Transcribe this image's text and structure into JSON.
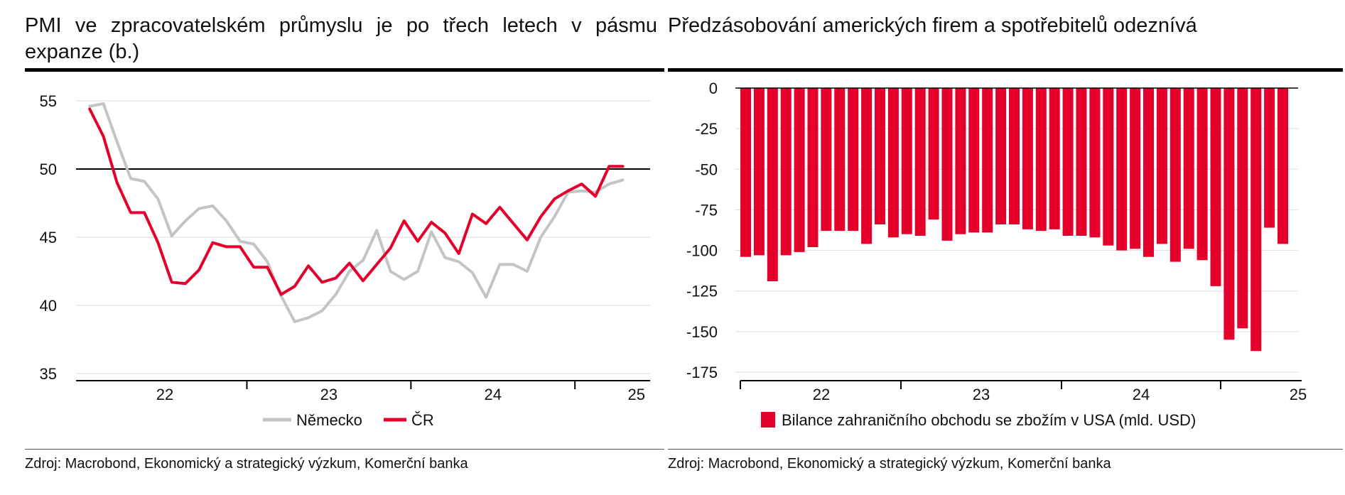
{
  "colors": {
    "germany": "#c4c4c4",
    "czech": "#e4002b",
    "bars": "#e4002b",
    "grid": "#dddddd"
  },
  "left": {
    "title": "PMI ve zpracovatelském průmyslu je po třech letech v pásmu expanze (b.)",
    "source": "Zdroj: Macrobond, Ekonomický a strategický výzkum, Komerční banka"
  },
  "right": {
    "title": "Předzásobování amerických firem a spotřebitelů odeznívá",
    "source": "Zdroj: Macrobond, Ekonomický a strategický výzkum, Komerční banka"
  },
  "chart_data": [
    {
      "type": "line",
      "title": "PMI ve zpracovatelském průmyslu je po třech letech v pásmu expanze (b.)",
      "ylim": [
        35,
        55
      ],
      "yticks": [
        55,
        50,
        45,
        40,
        35
      ],
      "reference_line": 50,
      "xticks": [
        "22",
        "23",
        "24",
        "25"
      ],
      "grid": true,
      "legend": "bottom",
      "x_months": [
        "2022-01",
        "2022-02",
        "2022-03",
        "2022-04",
        "2022-05",
        "2022-06",
        "2022-07",
        "2022-08",
        "2022-09",
        "2022-10",
        "2022-11",
        "2022-12",
        "2023-01",
        "2023-02",
        "2023-03",
        "2023-04",
        "2023-05",
        "2023-06",
        "2023-07",
        "2023-08",
        "2023-09",
        "2023-10",
        "2023-11",
        "2023-12",
        "2024-01",
        "2024-02",
        "2024-03",
        "2024-04",
        "2024-05",
        "2024-06",
        "2024-07",
        "2024-08",
        "2024-09",
        "2024-10",
        "2024-11",
        "2024-12",
        "2025-01",
        "2025-02",
        "2025-03",
        "2025-04"
      ],
      "series": [
        {
          "name": "Německo",
          "values": [
            54.6,
            54.8,
            52.0,
            49.3,
            49.1,
            47.8,
            45.1,
            46.2,
            47.1,
            47.3,
            46.2,
            44.7,
            44.5,
            43.2,
            40.7,
            38.8,
            39.1,
            39.6,
            40.8,
            42.5,
            43.3,
            45.5,
            42.5,
            41.9,
            42.5,
            45.4,
            43.5,
            43.2,
            42.4,
            40.6,
            43.0,
            43.0,
            42.5,
            45.0,
            46.5,
            48.3,
            48.4,
            48.3,
            48.9,
            49.2
          ]
        },
        {
          "name": "ČR",
          "values": [
            54.4,
            52.4,
            49.0,
            46.8,
            46.8,
            44.6,
            41.7,
            41.6,
            42.6,
            44.6,
            44.3,
            44.3,
            42.8,
            42.8,
            40.8,
            41.4,
            42.9,
            41.7,
            42.0,
            43.1,
            41.8,
            43.0,
            44.2,
            46.2,
            44.7,
            46.1,
            45.3,
            43.8,
            46.7,
            46.0,
            47.2,
            46.0,
            44.8,
            46.5,
            47.8,
            48.4,
            48.9,
            48.0,
            50.2,
            50.2
          ]
        }
      ]
    },
    {
      "type": "bar",
      "title": "Předzásobování amerických firem a spotřebitelů odeznívá",
      "ylim": [
        -175,
        0
      ],
      "yticks": [
        0,
        -25,
        -50,
        -75,
        -100,
        -125,
        -150,
        -175
      ],
      "xticks": [
        "22",
        "23",
        "24",
        "25"
      ],
      "grid": true,
      "legend": "bottom",
      "series": [
        {
          "name": "Bilance zahraničního obchodu se zbožím v USA (mld. USD)",
          "values": [
            -104,
            -103,
            -119,
            -103,
            -101,
            -98,
            -88,
            -88,
            -88,
            -96,
            -84,
            -92,
            -90,
            -91,
            -81,
            -94,
            -90,
            -89,
            -89,
            -84,
            -84,
            -87,
            -88,
            -87,
            -91,
            -91,
            -92,
            -97,
            -100,
            -99,
            -104,
            -96,
            -107,
            -99,
            -106,
            -122,
            -155,
            -148,
            -162,
            -86,
            -96
          ]
        }
      ]
    }
  ]
}
